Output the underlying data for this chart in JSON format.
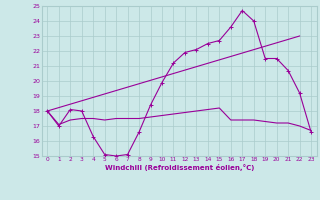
{
  "xlabel": "Windchill (Refroidissement éolien,°C)",
  "xlim": [
    -0.5,
    23.5
  ],
  "ylim": [
    15,
    25
  ],
  "yticks": [
    15,
    16,
    17,
    18,
    19,
    20,
    21,
    22,
    23,
    24,
    25
  ],
  "xticks": [
    0,
    1,
    2,
    3,
    4,
    5,
    6,
    7,
    8,
    9,
    10,
    11,
    12,
    13,
    14,
    15,
    16,
    17,
    18,
    19,
    20,
    21,
    22,
    23
  ],
  "bg_color": "#cce8e8",
  "grid_color": "#aacccc",
  "line_color": "#990099",
  "line1_x": [
    0,
    1,
    2,
    3,
    4,
    5,
    6,
    7,
    8,
    9,
    10,
    11,
    12,
    13,
    14,
    15,
    16,
    17,
    18,
    19,
    20,
    21,
    22,
    23
  ],
  "line1_y": [
    18,
    17,
    18.1,
    18,
    16.3,
    15.1,
    15.0,
    15.1,
    16.6,
    18.4,
    19.9,
    21.2,
    21.9,
    22.1,
    22.5,
    22.7,
    23.6,
    24.7,
    24.0,
    21.5,
    21.5,
    20.7,
    19.2,
    16.6
  ],
  "line2_x": [
    0,
    22
  ],
  "line2_y": [
    18,
    23.0
  ],
  "line3_x": [
    0,
    1,
    2,
    3,
    4,
    5,
    6,
    7,
    8,
    9,
    10,
    11,
    12,
    13,
    14,
    15,
    16,
    17,
    18,
    19,
    20,
    21,
    22,
    23
  ],
  "line3_y": [
    18,
    17.1,
    17.4,
    17.5,
    17.5,
    17.4,
    17.5,
    17.5,
    17.5,
    17.6,
    17.7,
    17.8,
    17.9,
    18.0,
    18.1,
    18.2,
    17.4,
    17.4,
    17.4,
    17.3,
    17.2,
    17.2,
    17.0,
    16.7
  ]
}
